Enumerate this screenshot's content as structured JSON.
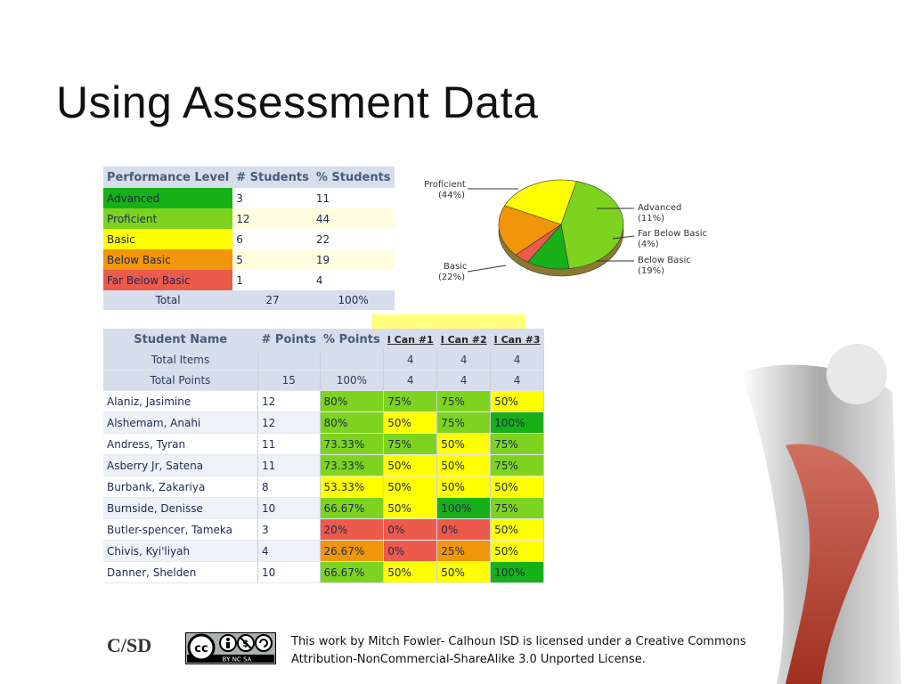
{
  "slide": {
    "title": "Using Assessment Data"
  },
  "performance_table": {
    "headers": [
      "Performance Level",
      "# Students",
      "% Students"
    ],
    "rows": [
      {
        "level": "Advanced",
        "students": "3",
        "percent": "11",
        "color": "#18b018"
      },
      {
        "level": "Proficient",
        "students": "12",
        "percent": "44",
        "color": "#7ed321"
      },
      {
        "level": "Basic",
        "students": "6",
        "percent": "22",
        "color": "#ffff00"
      },
      {
        "level": "Below Basic",
        "students": "5",
        "percent": "19",
        "color": "#f0960a"
      },
      {
        "level": "Far Below Basic",
        "students": "1",
        "percent": "4",
        "color": "#ec5a4c"
      }
    ],
    "total": {
      "label": "Total",
      "students": "27",
      "percent": "100%"
    }
  },
  "pie": {
    "labels": [
      "Proficient",
      "(44%)",
      "Advanced",
      "(11%)",
      "Far Below Basic",
      "(4%)",
      "Below Basic",
      "(19%)",
      "Basic",
      "(22%)"
    ]
  },
  "chart_data": {
    "type": "pie",
    "categories": [
      "Proficient",
      "Advanced",
      "Far Below Basic",
      "Below Basic",
      "Basic"
    ],
    "values": [
      44,
      11,
      4,
      19,
      22
    ],
    "colors": [
      "#7ed321",
      "#18b018",
      "#ec5a4c",
      "#f0960a",
      "#ffff00"
    ]
  },
  "student_table": {
    "headers": [
      "Student Name",
      "# Points",
      "% Points",
      "I Can #1",
      "I Can #2",
      "I Can #3"
    ],
    "total_items": {
      "label": "Total Items",
      "points": "",
      "percent": "",
      "c1": "4",
      "c2": "4",
      "c3": "4"
    },
    "total_points": {
      "label": "Total Points",
      "points": "15",
      "percent": "100%",
      "c1": "4",
      "c2": "4",
      "c3": "4"
    },
    "rows": [
      {
        "name": "Alaniz, Jasimine",
        "points": "12",
        "percent": "80%",
        "c1": "75%",
        "c2": "75%",
        "c3": "50%",
        "k": [
          "g",
          "g",
          "g",
          "y"
        ]
      },
      {
        "name": "Alshemam, Anahi",
        "points": "12",
        "percent": "80%",
        "c1": "50%",
        "c2": "75%",
        "c3": "100%",
        "k": [
          "g",
          "y",
          "g",
          "dg"
        ]
      },
      {
        "name": "Andress, Tyran",
        "points": "11",
        "percent": "73.33%",
        "c1": "75%",
        "c2": "50%",
        "c3": "75%",
        "k": [
          "g",
          "g",
          "y",
          "g"
        ]
      },
      {
        "name": "Asberry Jr, Satena",
        "points": "11",
        "percent": "73.33%",
        "c1": "50%",
        "c2": "50%",
        "c3": "75%",
        "k": [
          "g",
          "y",
          "y",
          "g"
        ]
      },
      {
        "name": "Burbank, Zakariya",
        "points": "8",
        "percent": "53.33%",
        "c1": "50%",
        "c2": "50%",
        "c3": "50%",
        "k": [
          "y",
          "y",
          "y",
          "y"
        ]
      },
      {
        "name": "Burnside, Denisse",
        "points": "10",
        "percent": "66.67%",
        "c1": "50%",
        "c2": "100%",
        "c3": "75%",
        "k": [
          "g",
          "y",
          "dg",
          "g"
        ]
      },
      {
        "name": "Butler-spencer, Tameka",
        "points": "3",
        "percent": "20%",
        "c1": "0%",
        "c2": "0%",
        "c3": "50%",
        "k": [
          "r",
          "r",
          "r",
          "y"
        ]
      },
      {
        "name": "Chivis, Kyi'liyah",
        "points": "4",
        "percent": "26.67%",
        "c1": "0%",
        "c2": "25%",
        "c3": "50%",
        "k": [
          "o",
          "r",
          "o",
          "y"
        ]
      },
      {
        "name": "Danner, Shelden",
        "points": "10",
        "percent": "66.67%",
        "c1": "50%",
        "c2": "50%",
        "c3": "100%",
        "k": [
          "g",
          "y",
          "y",
          "dg"
        ]
      }
    ]
  },
  "footer": {
    "logo_text": "C/SD",
    "cc_text": "BY NC SA",
    "license_line1": "This work by Mitch Fowler- Calhoun ISD is licensed under a Creative Commons",
    "license_line2": "Attribution-NonCommercial-ShareAlike 3.0 Unported License."
  }
}
